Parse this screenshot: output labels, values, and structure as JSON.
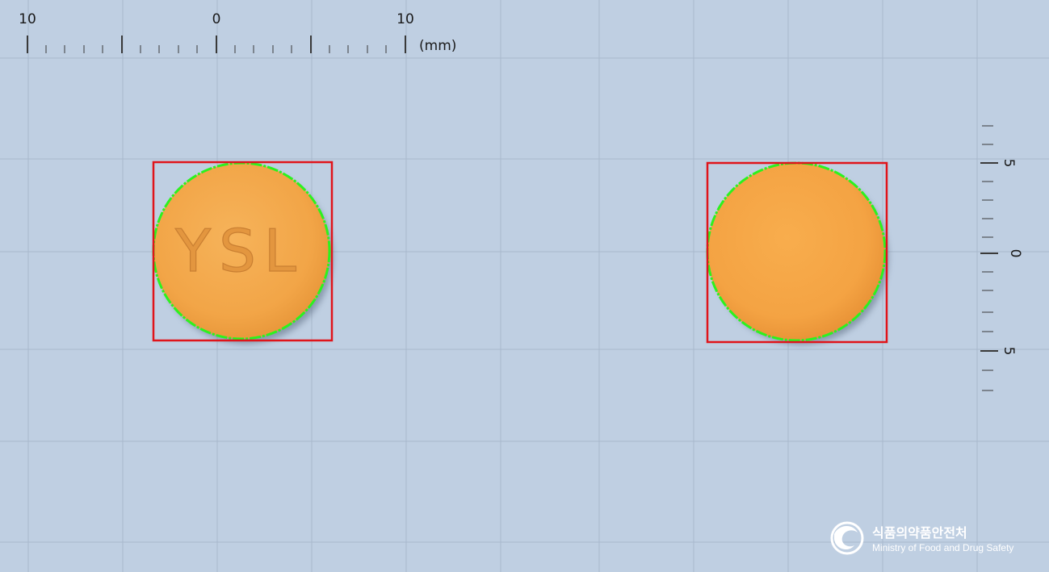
{
  "ruler_top": {
    "labels": [
      "10",
      "0",
      "10"
    ],
    "unit": "(mm)"
  },
  "ruler_right": {
    "labels": [
      "5",
      "0",
      "5"
    ]
  },
  "pill_front": {
    "imprint": "YSL",
    "color": "#f3a94c"
  },
  "pill_back": {
    "imprint": "",
    "color": "#f6a543"
  },
  "logo": {
    "korean": "식품의약품안전처",
    "english": "Ministry of Food and Drug Safety"
  },
  "colors": {
    "background": "#bfcfe2",
    "grid_major": "#9fb0c4",
    "bbox": "#e0141a",
    "contour": "#2cf21e"
  }
}
